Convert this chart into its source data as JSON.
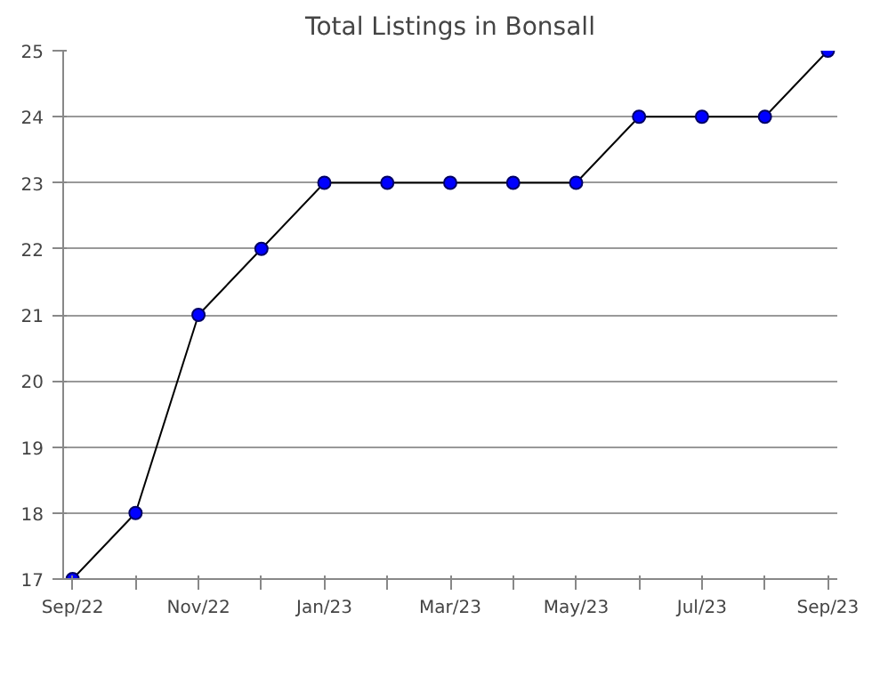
{
  "chart_data": {
    "type": "line",
    "title": "Total Listings in Bonsall",
    "categories": [
      "Sep/22",
      null,
      "Nov/22",
      null,
      "Jan/23",
      null,
      "Mar/23",
      null,
      "May/23",
      null,
      "Jul/23",
      null,
      "Sep/23"
    ],
    "series": [
      {
        "color": "#0000ff",
        "values": [
          17,
          18,
          21,
          22,
          23,
          23,
          23,
          23,
          23,
          24,
          24,
          24,
          25
        ]
      }
    ],
    "ylim": [
      17,
      25
    ],
    "yticks": [
      17,
      18,
      19,
      20,
      21,
      22,
      23,
      24,
      25
    ],
    "grid": "y",
    "marker": "circle",
    "line_style": "solid"
  }
}
